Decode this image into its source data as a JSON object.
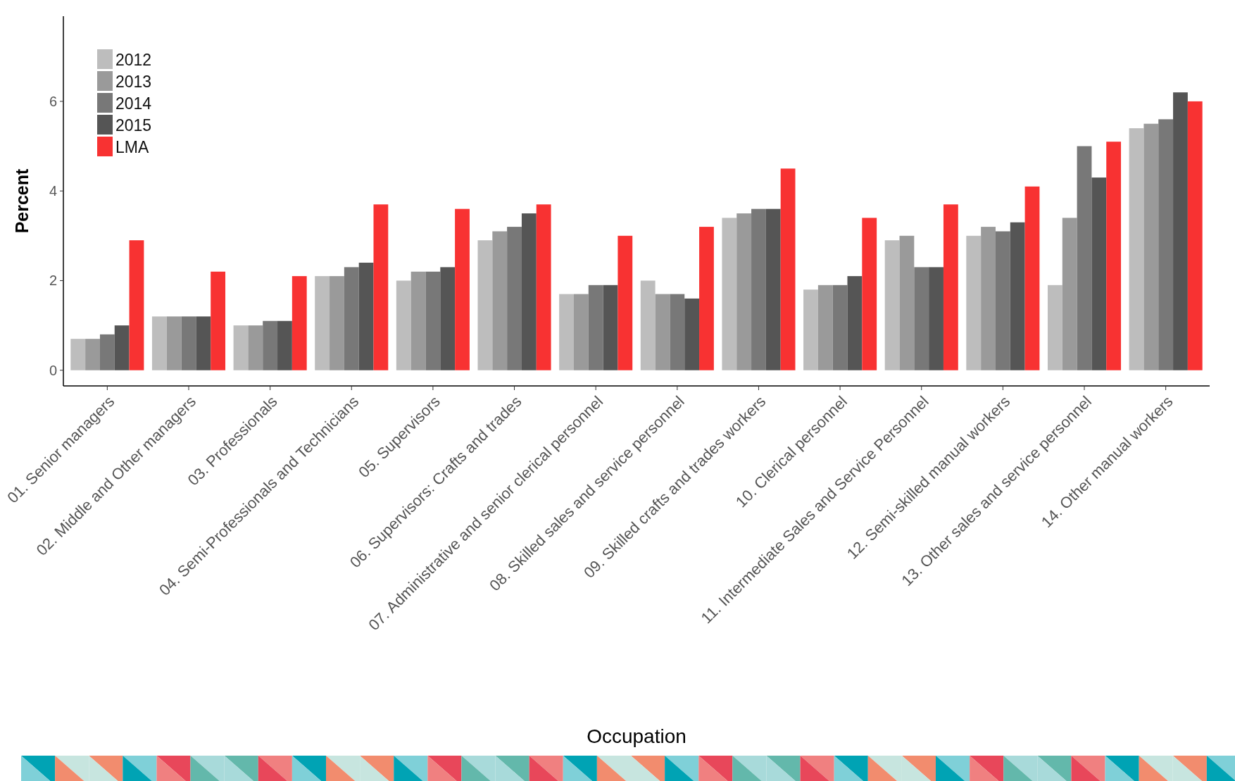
{
  "chart_data": {
    "type": "bar",
    "xlabel": "Occupation",
    "ylabel": "Percent",
    "categories": [
      "01. Senior managers",
      "02. Middle and Other managers",
      "03. Professionals",
      "04. Semi-Professionals and Technicians",
      "05. Supervisors",
      "06. Supervisors: Crafts and trades",
      "07. Administrative and senior clerical personnel",
      "08. Skilled sales and service personnel",
      "09. Skilled crafts and trades workers",
      "10. Clerical personnel",
      "11. Intermediate Sales and Service Personnel",
      "12. Semi-skilled manual workers",
      "13. Other sales and service personnel",
      "14. Other manual workers"
    ],
    "series": [
      {
        "name": "2012",
        "color": "#bdbdbd",
        "values": [
          0.7,
          1.2,
          1.0,
          2.1,
          2.0,
          2.9,
          1.7,
          2.0,
          3.4,
          1.8,
          2.9,
          3.0,
          1.9,
          5.4
        ]
      },
      {
        "name": "2013",
        "color": "#9a9a9a",
        "values": [
          0.7,
          1.2,
          1.0,
          2.1,
          2.2,
          3.1,
          1.7,
          1.7,
          3.5,
          1.9,
          3.0,
          3.2,
          3.4,
          5.5
        ]
      },
      {
        "name": "2014",
        "color": "#787878",
        "values": [
          0.8,
          1.2,
          1.1,
          2.3,
          2.2,
          3.2,
          1.9,
          1.7,
          3.6,
          1.9,
          2.3,
          3.1,
          5.0,
          5.6
        ]
      },
      {
        "name": "2015",
        "color": "#555555",
        "values": [
          1.0,
          1.2,
          1.1,
          2.4,
          2.3,
          3.5,
          1.9,
          1.6,
          3.6,
          2.1,
          2.3,
          3.3,
          4.3,
          6.2
        ]
      },
      {
        "name": "LMA",
        "color": "#f83232",
        "values": [
          2.9,
          2.2,
          2.1,
          3.7,
          3.6,
          3.7,
          3.0,
          3.2,
          4.5,
          3.4,
          3.7,
          4.1,
          5.1,
          6.0
        ]
      }
    ],
    "ylim": [
      -0.35,
      7.9
    ],
    "yticks": [
      0,
      2,
      4,
      6
    ],
    "grid": false,
    "legend": "top left"
  }
}
